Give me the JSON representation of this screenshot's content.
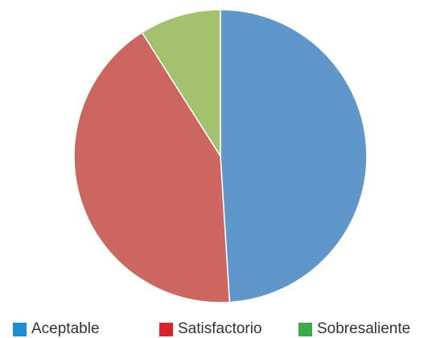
{
  "chart_data": {
    "type": "pie",
    "title": "",
    "categories": [
      "Aceptable",
      "Satisfactorio",
      "Sobresaliente"
    ],
    "values": [
      49,
      42,
      9
    ],
    "colors": [
      "#6196ca",
      "#cc6660",
      "#a3c16e"
    ],
    "legend_colors": [
      "#1f8dd6",
      "#d4262c",
      "#3aaa4b"
    ],
    "start_angle": "12 o'clock",
    "direction": "clockwise",
    "legend_position": "bottom"
  }
}
